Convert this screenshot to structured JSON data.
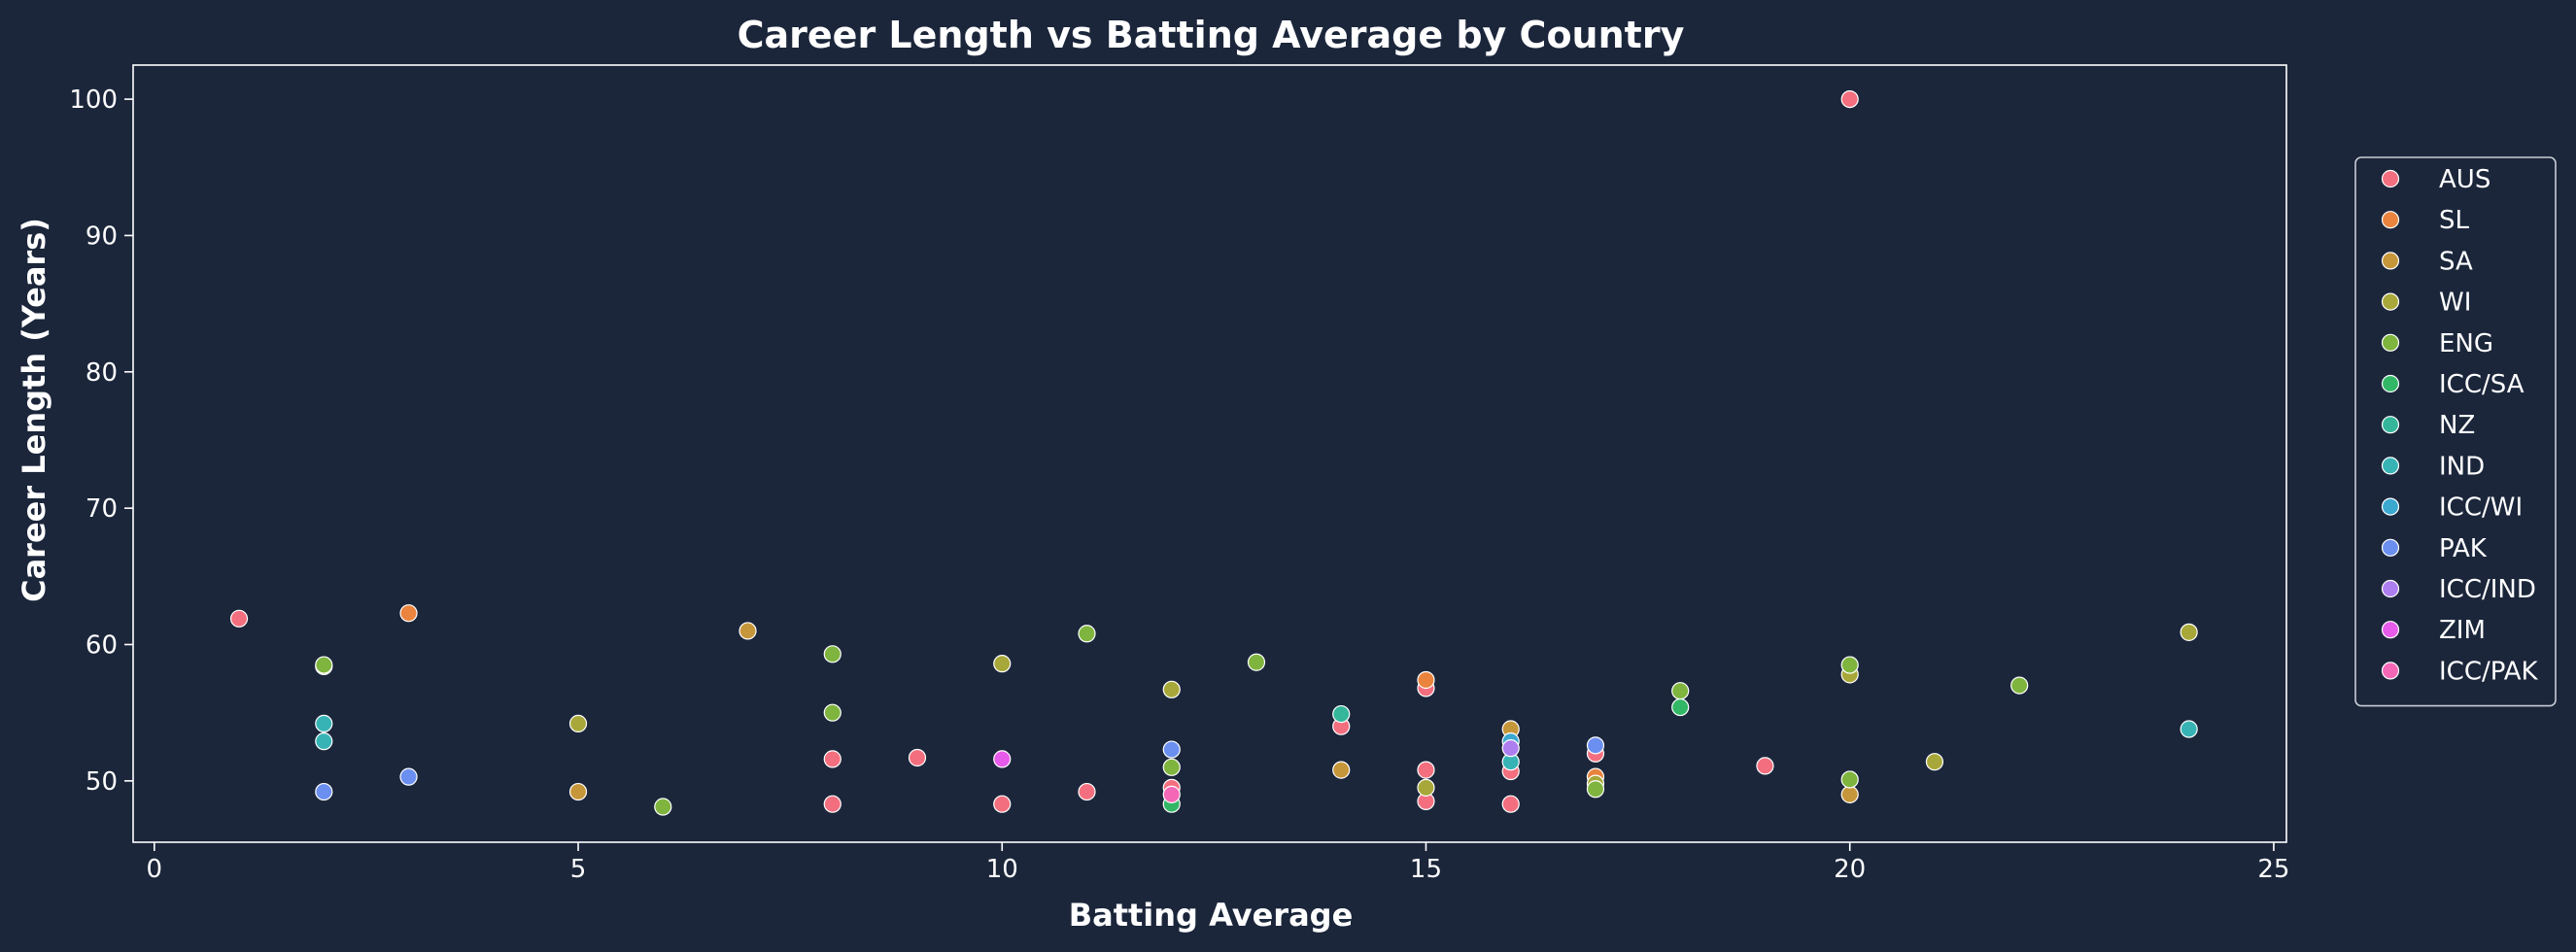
{
  "chart_data": {
    "type": "scatter",
    "title": "Career Length vs Batting Average by Country",
    "xlabel": "Batting Average",
    "ylabel": "Career Length (Years)",
    "xlim": [
      -0.25,
      25.15
    ],
    "ylim": [
      45.5,
      102.5
    ],
    "xticks": [
      0,
      5,
      10,
      15,
      20,
      25
    ],
    "yticks": [
      50,
      60,
      70,
      80,
      90,
      100
    ],
    "grid": false,
    "legend_position": "right",
    "colors": {
      "background": "#1b263b",
      "axes": "#ffffff",
      "marker_edge": "#ffffff"
    },
    "series": [
      {
        "name": "AUS",
        "color": "#f36f7f",
        "points": [
          [
            1,
            61.9
          ],
          [
            8,
            51.6
          ],
          [
            8,
            48.3
          ],
          [
            9,
            51.7
          ],
          [
            10,
            48.3
          ],
          [
            11,
            49.2
          ],
          [
            12,
            49.5
          ],
          [
            14,
            54
          ],
          [
            15,
            50.8
          ],
          [
            15,
            48.5
          ],
          [
            15,
            56.8
          ],
          [
            16,
            50.7
          ],
          [
            16,
            48.3
          ],
          [
            17,
            52
          ],
          [
            19,
            51.1
          ],
          [
            20,
            100
          ]
        ]
      },
      {
        "name": "SL",
        "color": "#e9833d",
        "points": [
          [
            3,
            62.3
          ],
          [
            15,
            57.4
          ],
          [
            17,
            50.3
          ]
        ]
      },
      {
        "name": "SA",
        "color": "#c6963a",
        "points": [
          [
            5,
            49.2
          ],
          [
            7,
            61
          ],
          [
            14,
            50.8
          ],
          [
            16,
            53.8
          ],
          [
            20,
            49
          ]
        ]
      },
      {
        "name": "WI",
        "color": "#a8a83a",
        "points": [
          [
            2,
            58.4
          ],
          [
            5,
            54.2
          ],
          [
            10,
            58.6
          ],
          [
            12,
            56.7
          ],
          [
            15,
            49.5
          ],
          [
            17,
            49.8
          ],
          [
            20,
            57.8
          ],
          [
            21,
            51.4
          ],
          [
            24,
            60.9
          ]
        ]
      },
      {
        "name": "ENG",
        "color": "#7fb43e",
        "points": [
          [
            2,
            58.5
          ],
          [
            6,
            48.1
          ],
          [
            8,
            55
          ],
          [
            8,
            59.3
          ],
          [
            11,
            60.8
          ],
          [
            12,
            51
          ],
          [
            13,
            58.7
          ],
          [
            17,
            49.4
          ],
          [
            18,
            56.6
          ],
          [
            20,
            58.5
          ],
          [
            20,
            50.1
          ],
          [
            22,
            57
          ]
        ]
      },
      {
        "name": "ICC/SA",
        "color": "#32b766",
        "points": [
          [
            12,
            48.3
          ],
          [
            18,
            55.4
          ]
        ]
      },
      {
        "name": "NZ",
        "color": "#35b69a",
        "points": [
          [
            14,
            54.9
          ]
        ]
      },
      {
        "name": "IND",
        "color": "#38b3b5",
        "points": [
          [
            2,
            54.2
          ],
          [
            2,
            52.9
          ],
          [
            16,
            51.4
          ],
          [
            24,
            53.8
          ]
        ]
      },
      {
        "name": "ICC/WI",
        "color": "#3ba8d0",
        "points": [
          [
            16,
            52.9
          ]
        ]
      },
      {
        "name": "PAK",
        "color": "#6b8ff0",
        "points": [
          [
            2,
            49.2
          ],
          [
            3,
            50.3
          ],
          [
            12,
            52.3
          ],
          [
            17,
            52.6
          ]
        ]
      },
      {
        "name": "ICC/IND",
        "color": "#ad7ef0",
        "points": [
          [
            16,
            52.4
          ]
        ]
      },
      {
        "name": "ZIM",
        "color": "#e65bea",
        "points": [
          [
            10,
            51.6
          ]
        ]
      },
      {
        "name": "ICC/PAK",
        "color": "#f467b6",
        "points": [
          [
            12,
            49
          ]
        ]
      }
    ]
  }
}
